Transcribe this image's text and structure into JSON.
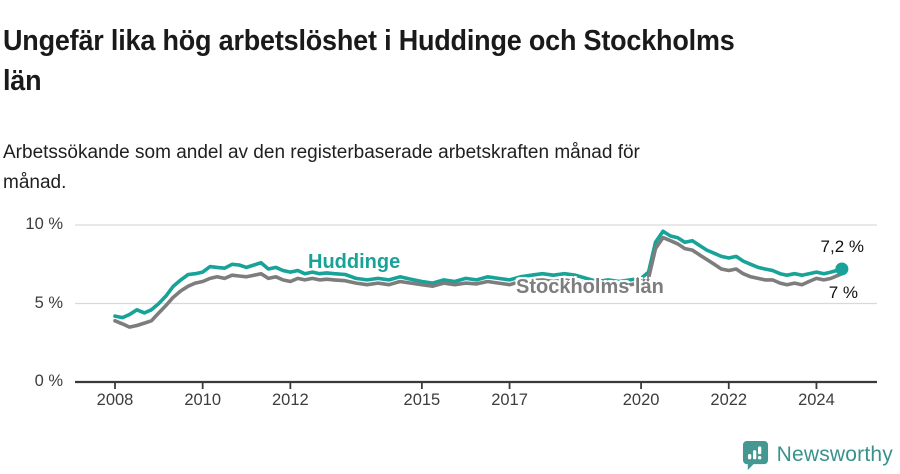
{
  "header": {
    "title": "Ungefär lika hög arbetslöshet i Huddinge och Stockholms län",
    "subtitle": "Arbetssökande som andel av den registerbaserade arbetskraften månad för månad."
  },
  "footer": {
    "brand": "Newsworthy",
    "logo_icon": "bar-chart-speech-bubble-icon"
  },
  "colors": {
    "huddinge_line": "#17a398",
    "stockholm_line": "#7d7d7d",
    "gridline": "#d9d9d9",
    "axis": "#3a3a3a",
    "text": "#1a1a1a",
    "brand_teal": "#38928d"
  },
  "chart_data": {
    "type": "line",
    "title": "Ungefär lika hög arbetslöshet i Huddinge och Stockholms län",
    "subtitle": "Arbetssökande som andel av den registerbaserade arbetskraften månad för månad.",
    "unit": "%",
    "grid": "horizontal-only",
    "legend_position": "inline-labels-on-lines",
    "x_axis": {
      "range": [
        2007.1,
        2025.4
      ],
      "tick_years": [
        2008,
        2010,
        2012,
        2015,
        2017,
        2020,
        2022,
        2024
      ],
      "tick_labels": [
        "2008",
        "2010",
        "2012",
        "2015",
        "2017",
        "2020",
        "2022",
        "2024"
      ]
    },
    "y_axis": {
      "range": [
        0,
        11.5
      ],
      "tick_values": [
        0,
        5,
        10
      ],
      "tick_labels": [
        "0 %",
        "5 %",
        "10 %"
      ]
    },
    "series": [
      {
        "name": "Huddinge",
        "color": "#17a398",
        "end_label": "7,2 %",
        "end_marker": "dot",
        "points": [
          [
            2008.0,
            4.2
          ],
          [
            2008.17,
            4.1
          ],
          [
            2008.33,
            4.3
          ],
          [
            2008.5,
            4.6
          ],
          [
            2008.67,
            4.4
          ],
          [
            2008.83,
            4.6
          ],
          [
            2009.0,
            5.0
          ],
          [
            2009.17,
            5.5
          ],
          [
            2009.33,
            6.1
          ],
          [
            2009.5,
            6.5
          ],
          [
            2009.67,
            6.85
          ],
          [
            2009.83,
            6.9
          ],
          [
            2010.0,
            7.0
          ],
          [
            2010.17,
            7.35
          ],
          [
            2010.33,
            7.3
          ],
          [
            2010.5,
            7.25
          ],
          [
            2010.67,
            7.5
          ],
          [
            2010.83,
            7.45
          ],
          [
            2011.0,
            7.3
          ],
          [
            2011.17,
            7.45
          ],
          [
            2011.33,
            7.6
          ],
          [
            2011.5,
            7.2
          ],
          [
            2011.67,
            7.3
          ],
          [
            2011.83,
            7.1
          ],
          [
            2012.0,
            7.0
          ],
          [
            2012.17,
            7.1
          ],
          [
            2012.33,
            6.9
          ],
          [
            2012.5,
            7.0
          ],
          [
            2012.67,
            6.9
          ],
          [
            2012.83,
            6.95
          ],
          [
            2013.0,
            6.9
          ],
          [
            2013.25,
            6.85
          ],
          [
            2013.5,
            6.6
          ],
          [
            2013.75,
            6.5
          ],
          [
            2014.0,
            6.6
          ],
          [
            2014.25,
            6.5
          ],
          [
            2014.5,
            6.7
          ],
          [
            2014.75,
            6.55
          ],
          [
            2015.0,
            6.4
          ],
          [
            2015.25,
            6.3
          ],
          [
            2015.5,
            6.5
          ],
          [
            2015.75,
            6.4
          ],
          [
            2016.0,
            6.6
          ],
          [
            2016.25,
            6.5
          ],
          [
            2016.5,
            6.7
          ],
          [
            2016.75,
            6.6
          ],
          [
            2017.0,
            6.5
          ],
          [
            2017.25,
            6.7
          ],
          [
            2017.5,
            6.8
          ],
          [
            2017.75,
            6.9
          ],
          [
            2018.0,
            6.8
          ],
          [
            2018.25,
            6.9
          ],
          [
            2018.5,
            6.8
          ],
          [
            2018.75,
            6.6
          ],
          [
            2019.0,
            6.4
          ],
          [
            2019.25,
            6.5
          ],
          [
            2019.5,
            6.4
          ],
          [
            2019.75,
            6.5
          ],
          [
            2020.0,
            6.6
          ],
          [
            2020.17,
            7.0
          ],
          [
            2020.33,
            8.9
          ],
          [
            2020.5,
            9.6
          ],
          [
            2020.67,
            9.3
          ],
          [
            2020.83,
            9.2
          ],
          [
            2021.0,
            8.9
          ],
          [
            2021.17,
            9.0
          ],
          [
            2021.33,
            8.7
          ],
          [
            2021.5,
            8.4
          ],
          [
            2021.67,
            8.2
          ],
          [
            2021.83,
            8.0
          ],
          [
            2022.0,
            7.9
          ],
          [
            2022.17,
            8.0
          ],
          [
            2022.33,
            7.7
          ],
          [
            2022.5,
            7.5
          ],
          [
            2022.67,
            7.3
          ],
          [
            2022.83,
            7.2
          ],
          [
            2023.0,
            7.1
          ],
          [
            2023.17,
            6.9
          ],
          [
            2023.33,
            6.8
          ],
          [
            2023.5,
            6.9
          ],
          [
            2023.67,
            6.8
          ],
          [
            2023.83,
            6.9
          ],
          [
            2024.0,
            7.0
          ],
          [
            2024.17,
            6.9
          ],
          [
            2024.33,
            7.0
          ],
          [
            2024.58,
            7.2
          ]
        ]
      },
      {
        "name": "Stockholms län",
        "color": "#7d7d7d",
        "end_label": "7 %",
        "end_marker": "none",
        "points": [
          [
            2008.0,
            3.9
          ],
          [
            2008.17,
            3.7
          ],
          [
            2008.33,
            3.5
          ],
          [
            2008.5,
            3.6
          ],
          [
            2008.67,
            3.75
          ],
          [
            2008.83,
            3.9
          ],
          [
            2009.0,
            4.4
          ],
          [
            2009.17,
            4.9
          ],
          [
            2009.33,
            5.4
          ],
          [
            2009.5,
            5.8
          ],
          [
            2009.67,
            6.1
          ],
          [
            2009.83,
            6.3
          ],
          [
            2010.0,
            6.4
          ],
          [
            2010.17,
            6.6
          ],
          [
            2010.33,
            6.7
          ],
          [
            2010.5,
            6.6
          ],
          [
            2010.67,
            6.8
          ],
          [
            2010.83,
            6.75
          ],
          [
            2011.0,
            6.7
          ],
          [
            2011.17,
            6.8
          ],
          [
            2011.33,
            6.9
          ],
          [
            2011.5,
            6.6
          ],
          [
            2011.67,
            6.7
          ],
          [
            2011.83,
            6.5
          ],
          [
            2012.0,
            6.4
          ],
          [
            2012.17,
            6.6
          ],
          [
            2012.33,
            6.5
          ],
          [
            2012.5,
            6.6
          ],
          [
            2012.67,
            6.5
          ],
          [
            2012.83,
            6.55
          ],
          [
            2013.0,
            6.5
          ],
          [
            2013.25,
            6.45
          ],
          [
            2013.5,
            6.3
          ],
          [
            2013.75,
            6.2
          ],
          [
            2014.0,
            6.3
          ],
          [
            2014.25,
            6.2
          ],
          [
            2014.5,
            6.4
          ],
          [
            2014.75,
            6.3
          ],
          [
            2015.0,
            6.2
          ],
          [
            2015.25,
            6.1
          ],
          [
            2015.5,
            6.3
          ],
          [
            2015.75,
            6.2
          ],
          [
            2016.0,
            6.3
          ],
          [
            2016.25,
            6.25
          ],
          [
            2016.5,
            6.4
          ],
          [
            2016.75,
            6.3
          ],
          [
            2017.0,
            6.2
          ],
          [
            2017.25,
            6.4
          ],
          [
            2017.5,
            6.45
          ],
          [
            2017.75,
            6.5
          ],
          [
            2018.0,
            6.4
          ],
          [
            2018.25,
            6.5
          ],
          [
            2018.5,
            6.4
          ],
          [
            2018.75,
            6.3
          ],
          [
            2019.0,
            6.1
          ],
          [
            2019.25,
            6.2
          ],
          [
            2019.5,
            6.1
          ],
          [
            2019.75,
            6.2
          ],
          [
            2020.0,
            6.3
          ],
          [
            2020.17,
            6.6
          ],
          [
            2020.33,
            8.5
          ],
          [
            2020.5,
            9.2
          ],
          [
            2020.67,
            9.0
          ],
          [
            2020.83,
            8.8
          ],
          [
            2021.0,
            8.5
          ],
          [
            2021.17,
            8.4
          ],
          [
            2021.33,
            8.1
          ],
          [
            2021.5,
            7.8
          ],
          [
            2021.67,
            7.5
          ],
          [
            2021.83,
            7.2
          ],
          [
            2022.0,
            7.1
          ],
          [
            2022.17,
            7.2
          ],
          [
            2022.33,
            6.9
          ],
          [
            2022.5,
            6.7
          ],
          [
            2022.67,
            6.6
          ],
          [
            2022.83,
            6.5
          ],
          [
            2023.0,
            6.5
          ],
          [
            2023.17,
            6.3
          ],
          [
            2023.33,
            6.2
          ],
          [
            2023.5,
            6.3
          ],
          [
            2023.67,
            6.2
          ],
          [
            2023.83,
            6.4
          ],
          [
            2024.0,
            6.6
          ],
          [
            2024.17,
            6.5
          ],
          [
            2024.33,
            6.6
          ],
          [
            2024.58,
            6.9
          ]
        ]
      }
    ]
  }
}
